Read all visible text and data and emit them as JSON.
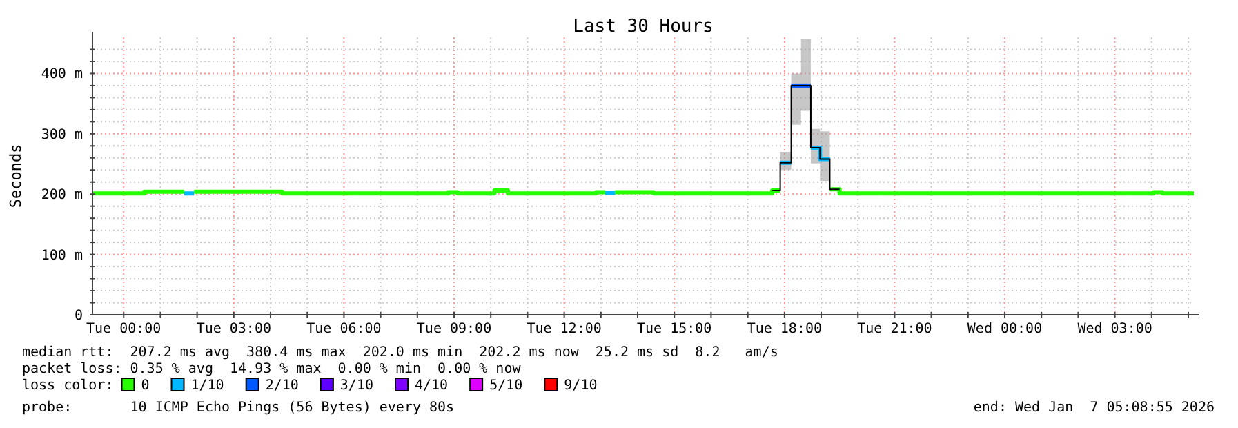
{
  "chart_data": {
    "type": "step",
    "title": "Last 30 Hours",
    "ylabel": "Seconds",
    "xlim": [
      "2026-01-05T23:09",
      "2026-01-07T05:09"
    ],
    "xticks": [
      {
        "value": "2026-01-06T00:00",
        "label": "Tue 00:00"
      },
      {
        "value": "2026-01-06T01:00",
        "label": null
      },
      {
        "value": "2026-01-06T02:00",
        "label": null
      },
      {
        "value": "2026-01-06T03:00",
        "label": "Tue 03:00"
      },
      {
        "value": "2026-01-06T04:00",
        "label": null
      },
      {
        "value": "2026-01-06T05:00",
        "label": null
      },
      {
        "value": "2026-01-06T06:00",
        "label": "Tue 06:00"
      },
      {
        "value": "2026-01-06T07:00",
        "label": null
      },
      {
        "value": "2026-01-06T08:00",
        "label": null
      },
      {
        "value": "2026-01-06T09:00",
        "label": "Tue 09:00"
      },
      {
        "value": "2026-01-06T10:00",
        "label": null
      },
      {
        "value": "2026-01-06T11:00",
        "label": null
      },
      {
        "value": "2026-01-06T12:00",
        "label": "Tue 12:00"
      },
      {
        "value": "2026-01-06T13:00",
        "label": null
      },
      {
        "value": "2026-01-06T14:00",
        "label": null
      },
      {
        "value": "2026-01-06T15:00",
        "label": "Tue 15:00"
      },
      {
        "value": "2026-01-06T16:00",
        "label": null
      },
      {
        "value": "2026-01-06T17:00",
        "label": null
      },
      {
        "value": "2026-01-06T18:00",
        "label": "Tue 18:00"
      },
      {
        "value": "2026-01-06T19:00",
        "label": null
      },
      {
        "value": "2026-01-06T20:00",
        "label": null
      },
      {
        "value": "2026-01-06T21:00",
        "label": "Tue 21:00"
      },
      {
        "value": "2026-01-06T22:00",
        "label": null
      },
      {
        "value": "2026-01-06T23:00",
        "label": null
      },
      {
        "value": "2026-01-07T00:00",
        "label": "Wed 00:00"
      },
      {
        "value": "2026-01-07T01:00",
        "label": null
      },
      {
        "value": "2026-01-07T02:00",
        "label": null
      },
      {
        "value": "2026-01-07T03:00",
        "label": "Wed 03:00"
      },
      {
        "value": "2026-01-07T04:00",
        "label": null
      },
      {
        "value": "2026-01-07T05:00",
        "label": null
      }
    ],
    "ylim": [
      0,
      460
    ],
    "yticks": [
      {
        "value": 0,
        "label": "0"
      },
      {
        "value": 20,
        "label": null
      },
      {
        "value": 40,
        "label": null
      },
      {
        "value": 60,
        "label": null
      },
      {
        "value": 80,
        "label": null
      },
      {
        "value": 100,
        "label": "100 m"
      },
      {
        "value": 120,
        "label": null
      },
      {
        "value": 140,
        "label": null
      },
      {
        "value": 160,
        "label": null
      },
      {
        "value": 180,
        "label": null
      },
      {
        "value": 200,
        "label": "200 m"
      },
      {
        "value": 220,
        "label": null
      },
      {
        "value": 240,
        "label": null
      },
      {
        "value": 260,
        "label": null
      },
      {
        "value": 280,
        "label": null
      },
      {
        "value": 300,
        "label": "300 m"
      },
      {
        "value": 320,
        "label": null
      },
      {
        "value": 340,
        "label": null
      },
      {
        "value": 360,
        "label": null
      },
      {
        "value": 380,
        "label": null
      },
      {
        "value": 400,
        "label": "400 m"
      },
      {
        "value": 420,
        "label": null
      },
      {
        "value": 440,
        "label": null
      }
    ],
    "grid": true,
    "legend": "bottom",
    "legend_title": "loss color:",
    "series": [
      {
        "name": "0",
        "color": "#26ff00",
        "x": [
          "2026-01-05T23:09",
          "2026-01-06T00:34",
          "2026-01-06T01:39",
          null,
          "2026-01-06T01:55",
          "2026-01-06T04:19",
          "2026-01-06T08:51",
          "2026-01-06T09:06",
          "2026-01-06T10:06",
          "2026-01-06T10:28",
          "2026-01-06T12:52",
          "2026-01-06T13:07",
          null,
          "2026-01-06T13:23",
          "2026-01-06T14:26",
          "2026-01-06T17:40",
          "2026-01-06T17:53",
          null,
          "2026-01-06T19:14",
          "2026-01-06T19:30",
          "2026-01-07T04:03",
          "2026-01-07T04:18",
          "2026-01-07T05:09"
        ],
        "values": [
          201,
          204,
          204,
          null,
          204,
          201,
          203,
          201,
          206,
          201,
          203,
          203,
          null,
          203,
          201,
          206,
          206,
          null,
          208,
          201,
          203,
          201,
          201
        ]
      },
      {
        "name": "1/10",
        "color": "#00b8ff",
        "x": [
          "2026-01-06T01:39",
          "2026-01-06T01:55",
          null,
          "2026-01-06T13:07",
          "2026-01-06T13:23",
          null,
          "2026-01-06T17:53",
          "2026-01-06T18:11",
          null,
          "2026-01-06T18:43",
          "2026-01-06T18:58",
          "2026-01-06T19:14"
        ],
        "values": [
          201,
          201,
          null,
          202,
          202,
          null,
          252,
          252,
          null,
          277,
          258,
          258
        ]
      },
      {
        "name": "2/10",
        "color": "#0059ff",
        "x": [
          "2026-01-06T18:11",
          "2026-01-06T18:43"
        ],
        "values": [
          380,
          380
        ]
      },
      {
        "name": "3/10",
        "color": "#5e00ff"
      },
      {
        "name": "4/10",
        "color": "#7e00ff"
      },
      {
        "name": "5/10",
        "color": "#dd00ff"
      },
      {
        "name": "9/10",
        "color": "#ff0000"
      },
      {
        "color": "#000000",
        "x": [
          "2026-01-06T17:40",
          "2026-01-06T17:53",
          "2026-01-06T18:11",
          "2026-01-06T18:27",
          "2026-01-06T18:43",
          "2026-01-06T18:58",
          "2026-01-06T19:14",
          "2026-01-06T19:30"
        ],
        "values": [
          206,
          252,
          380,
          380,
          277,
          258,
          208,
          208
        ],
        "lower": [
          null,
          240,
          315,
          338,
          251,
          222,
          222,
          null
        ],
        "upper": [
          null,
          270,
          400,
          457,
          308,
          304,
          304,
          null
        ]
      }
    ],
    "annotations": [
      "median rtt:  207.2 ms avg  380.4 ms max  202.0 ms min  202.2 ms now  25.2 ms sd  8.2   am/s",
      "packet loss: 0.35 % avg  14.93 % max  0.00 % min  0.00 % now",
      "probe:       10 ICMP Echo Pings (56 Bytes) every 80s",
      "end: Wed Jan  7 05:08:55 2026"
    ]
  }
}
